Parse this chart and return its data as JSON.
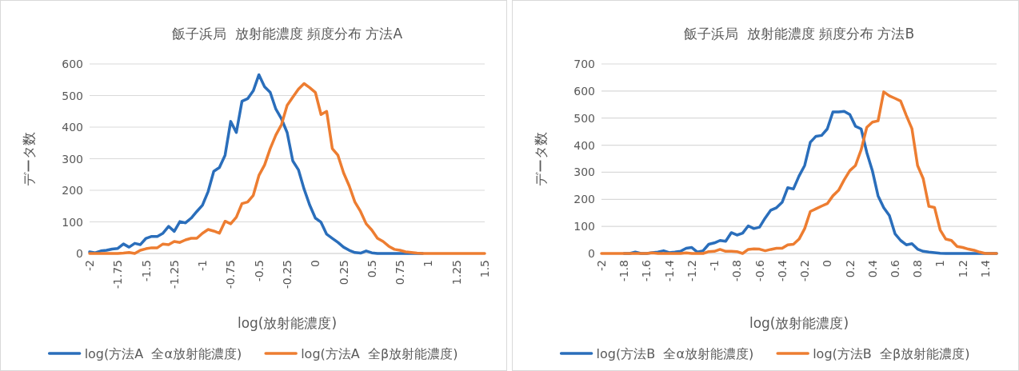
{
  "chart_data": [
    {
      "type": "line",
      "title": "飯子浜局  放射能濃度 頻度分布 方法A",
      "xlabel": "log(放射能濃度)",
      "ylabel": "データ数",
      "x": [
        -2,
        -1.95,
        -1.9,
        -1.85,
        -1.8,
        -1.75,
        -1.7,
        -1.65,
        -1.6,
        -1.55,
        -1.5,
        -1.45,
        -1.4,
        -1.35,
        -1.3,
        -1.25,
        -1.2,
        -1.15,
        -1.1,
        -1.05,
        -1,
        -0.95,
        -0.9,
        -0.85,
        -0.8,
        -0.75,
        -0.7,
        -0.65,
        -0.6,
        -0.55,
        -0.5,
        -0.45,
        -0.4,
        -0.35,
        -0.3,
        -0.25,
        -0.2,
        -0.15,
        -0.1,
        -0.05,
        0,
        0.05,
        0.1,
        0.15,
        0.2,
        0.25,
        0.3,
        0.35,
        0.4,
        0.45,
        0.5,
        0.55,
        0.6,
        0.65,
        0.7,
        0.75,
        0.8,
        0.85,
        0.9,
        0.95,
        1,
        1.05,
        1.1,
        1.15,
        1.2,
        1.25,
        1.3,
        1.35,
        1.4,
        1.45,
        1.5
      ],
      "series": [
        {
          "name": "log(方法A  全α放射能濃度)",
          "color": "#2a6ebb",
          "values": [
            5,
            2,
            8,
            10,
            14,
            16,
            30,
            20,
            32,
            28,
            48,
            54,
            54,
            64,
            86,
            70,
            101,
            97,
            112,
            133,
            153,
            196,
            260,
            272,
            311,
            418,
            383,
            482,
            490,
            515,
            566,
            528,
            510,
            457,
            426,
            383,
            293,
            265,
            204,
            153,
            112,
            99,
            61,
            48,
            35,
            20,
            10,
            3,
            1,
            8,
            2,
            0,
            0,
            0,
            0,
            0,
            0,
            0,
            0,
            0,
            null,
            null,
            null,
            null,
            null,
            null,
            null,
            null,
            null,
            null,
            null
          ]
        },
        {
          "name": "log(方法A  全β放射能濃度)",
          "color": "#ed7d31",
          "values": [
            0,
            0,
            0,
            0,
            0,
            0,
            1,
            3,
            0,
            10,
            15,
            18,
            18,
            30,
            28,
            38,
            35,
            43,
            48,
            48,
            64,
            76,
            71,
            64,
            102,
            94,
            115,
            158,
            163,
            184,
            247,
            280,
            332,
            375,
            408,
            469,
            495,
            520,
            538,
            525,
            510,
            440,
            450,
            332,
            311,
            255,
            214,
            163,
            133,
            94,
            74,
            48,
            38,
            23,
            13,
            10,
            5,
            3,
            1,
            0,
            0,
            0,
            0,
            0,
            0,
            0,
            0,
            0,
            0,
            0,
            0
          ]
        }
      ],
      "xlim": [
        -2,
        1.5
      ],
      "xticks": [
        -2,
        -1.75,
        -1.5,
        -1.25,
        -1,
        -0.75,
        -0.5,
        -0.25,
        0,
        0.25,
        0.5,
        0.75,
        1,
        1.25,
        1.5
      ],
      "ylim": [
        0,
        600
      ],
      "yticks": [
        0,
        100,
        200,
        300,
        400,
        500,
        600
      ],
      "grid": "y",
      "legend": "bottom"
    },
    {
      "type": "line",
      "title": "飯子浜局  放射能濃度 頻度分布 方法B",
      "xlabel": "log(放射能濃度)",
      "ylabel": "データ数",
      "x": [
        -2,
        -1.95,
        -1.9,
        -1.85,
        -1.8,
        -1.75,
        -1.7,
        -1.65,
        -1.6,
        -1.55,
        -1.5,
        -1.45,
        -1.4,
        -1.35,
        -1.3,
        -1.25,
        -1.2,
        -1.15,
        -1.1,
        -1.05,
        -1,
        -0.95,
        -0.9,
        -0.85,
        -0.8,
        -0.75,
        -0.7,
        -0.65,
        -0.6,
        -0.55,
        -0.5,
        -0.45,
        -0.4,
        -0.35,
        -0.3,
        -0.25,
        -0.2,
        -0.15,
        -0.1,
        -0.05,
        0,
        0.05,
        0.1,
        0.15,
        0.2,
        0.25,
        0.3,
        0.35,
        0.4,
        0.45,
        0.5,
        0.55,
        0.6,
        0.65,
        0.7,
        0.75,
        0.8,
        0.85,
        0.9,
        0.95,
        1,
        1.05,
        1.1,
        1.15,
        1.2,
        1.25,
        1.3,
        1.35,
        1.4,
        1.45,
        1.5
      ],
      "series": [
        {
          "name": "log(方法B  全α放射能濃度)",
          "color": "#2a6ebb",
          "values": [
            null,
            null,
            null,
            null,
            0,
            0,
            5,
            0,
            0,
            3,
            5,
            10,
            3,
            5,
            8,
            19,
            22,
            5,
            10,
            34,
            39,
            48,
            45,
            77,
            68,
            75,
            102,
            92,
            97,
            131,
            160,
            169,
            189,
            243,
            238,
            286,
            325,
            411,
            433,
            436,
            460,
            523,
            523,
            525,
            513,
            470,
            460,
            373,
            305,
            213,
            169,
            140,
            73,
            48,
            32,
            36,
            16,
            8,
            5,
            3,
            1,
            0,
            0,
            0,
            0,
            0,
            0,
            0,
            0,
            0,
            0
          ]
        },
        {
          "name": "log(方法B  全β放射能濃度)",
          "color": "#ed7d31",
          "values": [
            0,
            0,
            0,
            0,
            0,
            0,
            0,
            0,
            0,
            2,
            0,
            0,
            0,
            0,
            0,
            2,
            0,
            0,
            0,
            7,
            8,
            15,
            8,
            8,
            7,
            0,
            15,
            17,
            16,
            10,
            15,
            19,
            19,
            32,
            34,
            53,
            92,
            155,
            165,
            175,
            184,
            213,
            233,
            272,
            306,
            325,
            383,
            466,
            485,
            490,
            597,
            582,
            573,
            563,
            510,
            461,
            325,
            276,
            174,
            170,
            87,
            53,
            48,
            26,
            22,
            16,
            12,
            5,
            0,
            0,
            0
          ]
        }
      ],
      "xlim": [
        -2,
        1.5
      ],
      "xticks": [
        -2,
        -1.8,
        -1.6,
        -1.4,
        -1.2,
        -1,
        -0.8,
        -0.6,
        -0.4,
        -0.2,
        0,
        0.2,
        0.4,
        0.6,
        0.8,
        1,
        1.2,
        1.4
      ],
      "ylim": [
        0,
        700
      ],
      "yticks": [
        0,
        100,
        200,
        300,
        400,
        500,
        600,
        700
      ],
      "grid": "y",
      "legend": "bottom"
    }
  ]
}
